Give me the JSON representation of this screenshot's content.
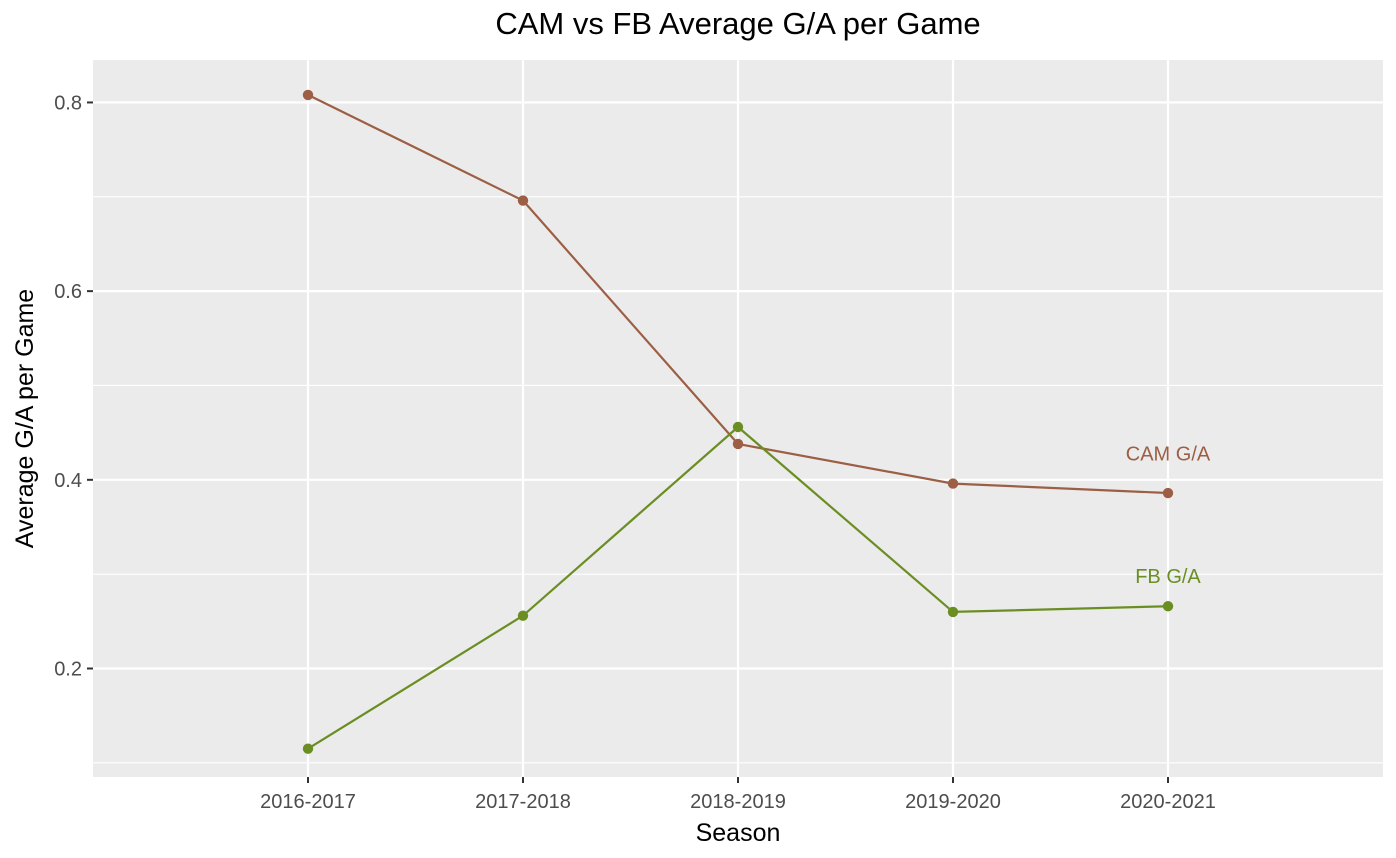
{
  "chart_data": {
    "type": "line",
    "title": "CAM vs FB Average G/A per Game",
    "xlabel": "Season",
    "ylabel": "Average G/A per Game",
    "categories": [
      "2016-2017",
      "2017-2018",
      "2018-2019",
      "2019-2020",
      "2020-2021"
    ],
    "ylim": [
      0.085,
      0.845
    ],
    "yticks": [
      0.2,
      0.4,
      0.6,
      0.8
    ],
    "ytick_labels": [
      "0.2",
      "0.4",
      "0.6",
      "0.8"
    ],
    "grid": true,
    "background": "#ebebeb",
    "series": [
      {
        "name": "CAM G/A",
        "color": "#9c5e44",
        "values": [
          0.808,
          0.696,
          0.438,
          0.396,
          0.386
        ],
        "label_y": 0.428
      },
      {
        "name": "FB G/A",
        "color": "#6b8e23",
        "values": [
          0.115,
          0.256,
          0.456,
          0.26,
          0.266
        ],
        "label_y": 0.298
      }
    ]
  }
}
